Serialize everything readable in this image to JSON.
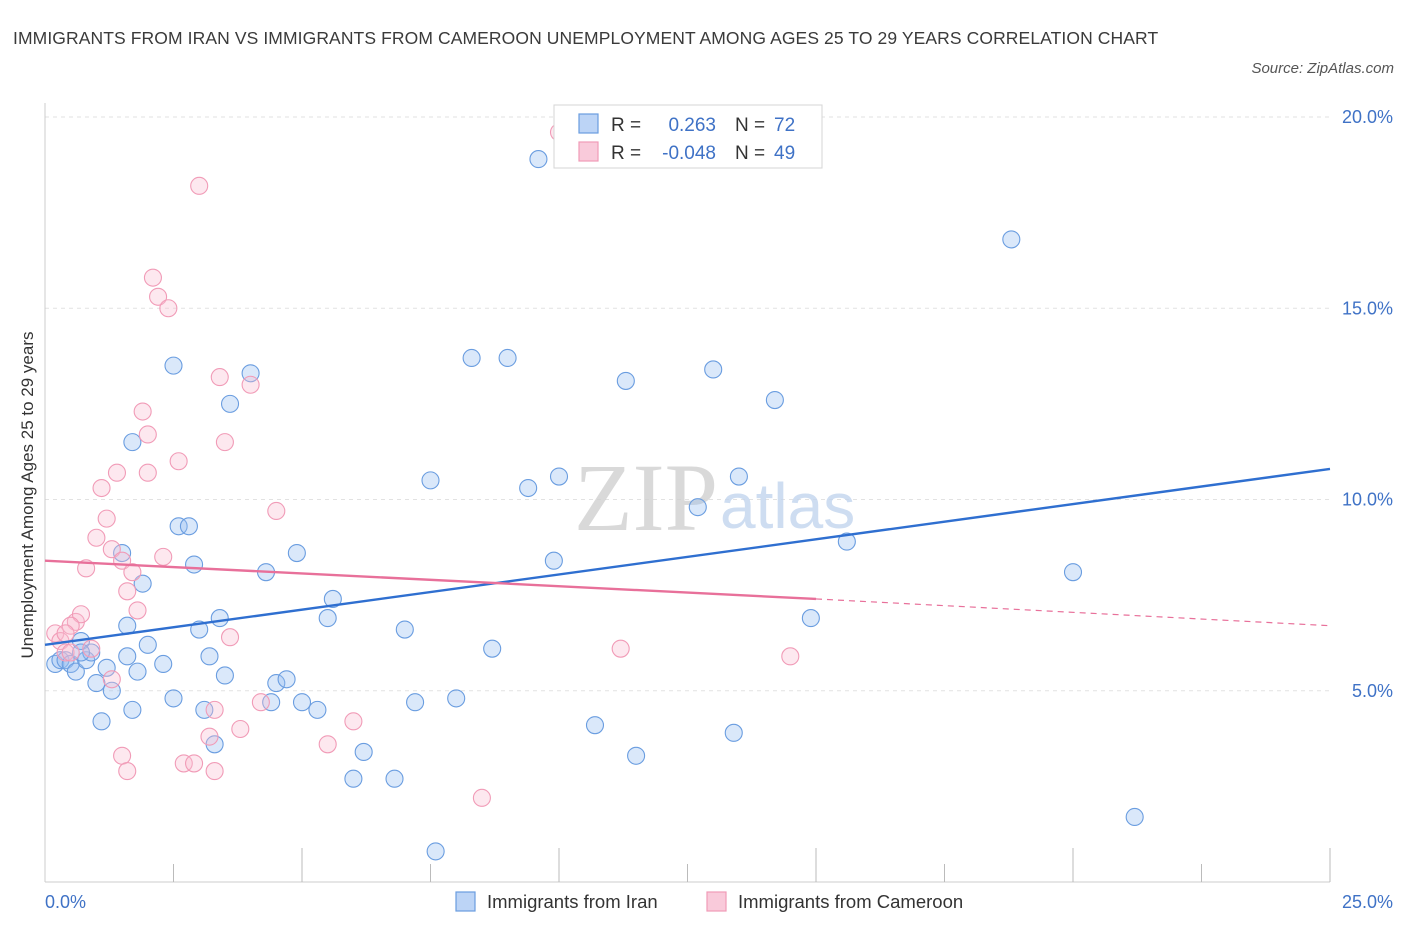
{
  "header": {
    "title": "IMMIGRANTS FROM IRAN VS IMMIGRANTS FROM CAMEROON UNEMPLOYMENT AMONG AGES 25 TO 29 YEARS CORRELATION CHART",
    "source": "Source: ZipAtlas.com"
  },
  "watermark": {
    "zip": "ZIP",
    "atlas": "atlas"
  },
  "colors": {
    "iran": "#6a9de0",
    "cameroon": "#f19bb7",
    "iran_line": "#2f6fd0",
    "cameroon_line": "#e8709a",
    "tick": "#3f72c6"
  },
  "chart_data": {
    "type": "scatter",
    "title": "IMMIGRANTS FROM IRAN VS IMMIGRANTS FROM CAMEROON UNEMPLOYMENT AMONG AGES 25 TO 29 YEARS CORRELATION CHART",
    "xlabel": "",
    "ylabel": "Unemployment Among Ages 25 to 29 years",
    "xlim": [
      0,
      25
    ],
    "ylim": [
      0,
      20.5
    ],
    "y_ticks": [
      5,
      10,
      15,
      20
    ],
    "y_tick_labels": [
      "5.0%",
      "10.0%",
      "15.0%",
      "20.0%"
    ],
    "x_tick_labels": [
      "0.0%",
      "25.0%"
    ],
    "grid": true,
    "legend": {
      "position": "top-center",
      "entries": [
        {
          "r_label": "R =",
          "r_value": "0.263",
          "n_label": "N =",
          "n_value": "72"
        },
        {
          "r_label": "R =",
          "r_value": "-0.048",
          "n_label": "N =",
          "n_value": "49"
        }
      ]
    },
    "series": [
      {
        "name": "Immigrants from Iran",
        "trend": {
          "x": [
            0,
            25
          ],
          "y": [
            6.2,
            10.8
          ]
        },
        "points": [
          [
            0.2,
            5.7
          ],
          [
            0.3,
            5.8
          ],
          [
            0.4,
            5.8
          ],
          [
            0.5,
            5.7
          ],
          [
            0.6,
            5.5
          ],
          [
            0.7,
            6.3
          ],
          [
            0.8,
            5.8
          ],
          [
            0.9,
            6.0
          ],
          [
            1.0,
            5.2
          ],
          [
            1.1,
            4.2
          ],
          [
            1.2,
            5.6
          ],
          [
            1.3,
            5.0
          ],
          [
            1.5,
            8.6
          ],
          [
            1.6,
            6.7
          ],
          [
            1.7,
            4.5
          ],
          [
            1.8,
            5.5
          ],
          [
            1.9,
            7.8
          ],
          [
            2.0,
            6.2
          ],
          [
            2.5,
            4.8
          ],
          [
            2.6,
            9.3
          ],
          [
            2.8,
            9.3
          ],
          [
            2.9,
            8.3
          ],
          [
            3.0,
            6.6
          ],
          [
            3.1,
            4.5
          ],
          [
            3.3,
            3.6
          ],
          [
            3.4,
            6.9
          ],
          [
            3.6,
            12.5
          ],
          [
            3.5,
            5.4
          ],
          [
            4.0,
            13.3
          ],
          [
            4.3,
            8.1
          ],
          [
            4.5,
            5.2
          ],
          [
            4.7,
            5.3
          ],
          [
            4.9,
            8.6
          ],
          [
            5.0,
            4.7
          ],
          [
            5.3,
            4.5
          ],
          [
            5.5,
            6.9
          ],
          [
            5.6,
            7.4
          ],
          [
            6.0,
            2.7
          ],
          [
            6.2,
            3.4
          ],
          [
            6.8,
            2.7
          ],
          [
            7.0,
            6.6
          ],
          [
            7.2,
            4.7
          ],
          [
            7.5,
            10.5
          ],
          [
            8.0,
            4.8
          ],
          [
            8.3,
            13.7
          ],
          [
            8.7,
            6.1
          ],
          [
            9.0,
            13.7
          ],
          [
            9.4,
            10.3
          ],
          [
            9.6,
            18.9
          ],
          [
            9.9,
            8.4
          ],
          [
            10.0,
            10.6
          ],
          [
            10.7,
            4.1
          ],
          [
            11.3,
            13.1
          ],
          [
            11.5,
            3.3
          ],
          [
            12.7,
            9.8
          ],
          [
            13.0,
            13.4
          ],
          [
            13.4,
            3.9
          ],
          [
            13.5,
            10.6
          ],
          [
            14.2,
            12.6
          ],
          [
            14.9,
            6.9
          ],
          [
            15.6,
            8.9
          ],
          [
            18.8,
            16.8
          ],
          [
            20.0,
            8.1
          ],
          [
            21.2,
            1.7
          ],
          [
            1.7,
            11.5
          ],
          [
            2.5,
            13.5
          ],
          [
            7.6,
            0.8
          ],
          [
            1.6,
            5.9
          ],
          [
            3.2,
            5.9
          ],
          [
            4.4,
            4.7
          ],
          [
            0.7,
            6.0
          ],
          [
            2.3,
            5.7
          ]
        ]
      },
      {
        "name": "Immigrants from Cameroon",
        "trend": {
          "x": [
            0,
            15.0
          ],
          "y": [
            8.4,
            7.4
          ]
        },
        "trend_dashed": {
          "x": [
            15.0,
            25
          ],
          "y": [
            7.4,
            6.7
          ]
        },
        "points": [
          [
            0.2,
            6.5
          ],
          [
            0.3,
            6.3
          ],
          [
            0.4,
            6.0
          ],
          [
            0.5,
            6.0
          ],
          [
            0.6,
            6.8
          ],
          [
            0.7,
            7.0
          ],
          [
            0.8,
            8.2
          ],
          [
            0.9,
            6.1
          ],
          [
            1.0,
            9.0
          ],
          [
            1.1,
            10.3
          ],
          [
            1.2,
            9.5
          ],
          [
            1.3,
            8.7
          ],
          [
            1.4,
            10.7
          ],
          [
            1.5,
            8.4
          ],
          [
            1.6,
            7.6
          ],
          [
            1.7,
            8.1
          ],
          [
            1.8,
            7.1
          ],
          [
            1.9,
            12.3
          ],
          [
            2.0,
            11.7
          ],
          [
            2.1,
            15.8
          ],
          [
            2.2,
            15.3
          ],
          [
            2.4,
            15.0
          ],
          [
            2.6,
            11.0
          ],
          [
            2.7,
            3.1
          ],
          [
            2.9,
            3.1
          ],
          [
            3.0,
            18.2
          ],
          [
            3.2,
            3.8
          ],
          [
            3.3,
            2.9
          ],
          [
            3.4,
            13.2
          ],
          [
            3.5,
            11.5
          ],
          [
            3.6,
            6.4
          ],
          [
            3.8,
            4.0
          ],
          [
            4.0,
            13.0
          ],
          [
            4.2,
            4.7
          ],
          [
            4.5,
            9.7
          ],
          [
            5.5,
            3.6
          ],
          [
            6.0,
            4.2
          ],
          [
            8.5,
            2.2
          ],
          [
            10.0,
            19.6
          ],
          [
            11.2,
            6.1
          ],
          [
            14.5,
            5.9
          ],
          [
            1.3,
            5.3
          ],
          [
            1.5,
            3.3
          ],
          [
            1.6,
            2.9
          ],
          [
            2.0,
            10.7
          ],
          [
            2.3,
            8.5
          ],
          [
            3.3,
            4.5
          ],
          [
            0.5,
            6.7
          ],
          [
            0.4,
            6.5
          ]
        ]
      }
    ]
  },
  "bottom_legend": {
    "iran": "Immigrants from Iran",
    "cameroon": "Immigrants from Cameroon"
  }
}
